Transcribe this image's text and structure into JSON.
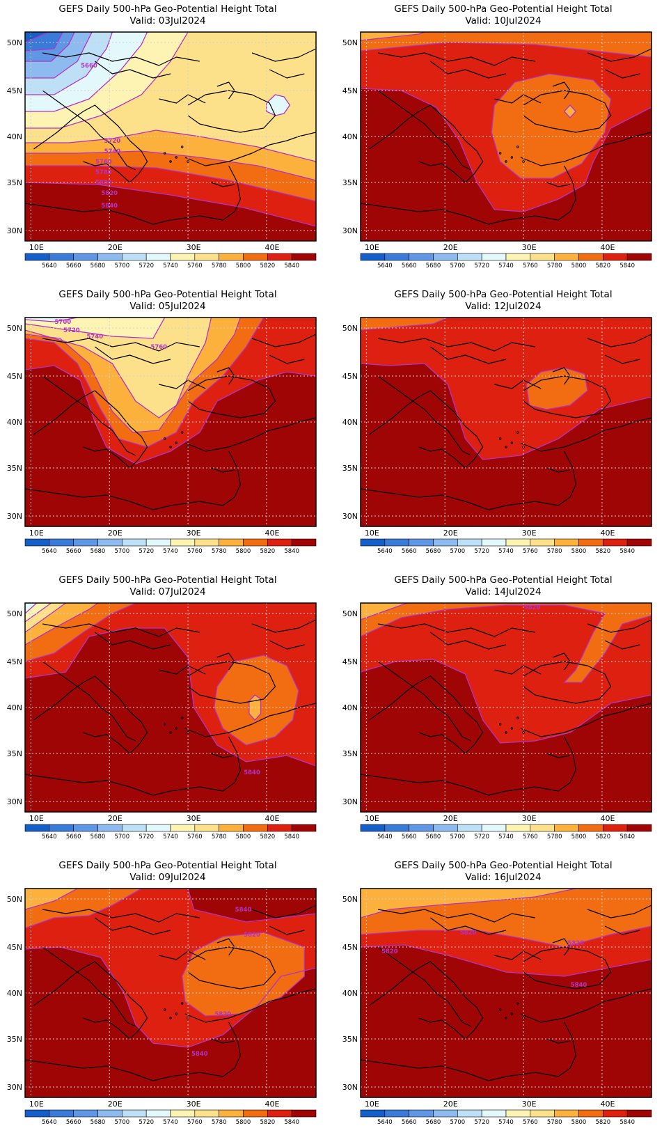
{
  "panel_title": "GEFS Daily 500-hPa Geo-Potential Height Total",
  "valid_prefix": "Valid:",
  "lat_labels": [
    "50N",
    "45N",
    "40N",
    "35N",
    "30N"
  ],
  "lon_labels": [
    "10E",
    "20E",
    "30E",
    "40E"
  ],
  "colorbar": {
    "labels": [
      "5640",
      "5660",
      "5680",
      "5700",
      "5720",
      "5740",
      "5760",
      "5780",
      "5800",
      "5820",
      "5840"
    ],
    "colors": [
      "#1560c8",
      "#3a7ad8",
      "#5f97e4",
      "#8dbbf0",
      "#bde0f7",
      "#e2f8fb",
      "#fdf4b4",
      "#fde08a",
      "#fbb13c",
      "#f26c12",
      "#dd2010",
      "#a00505"
    ],
    "contour_color": "#b233c6"
  },
  "chart_data": [
    {
      "type": "map",
      "valid": "03Jul2024",
      "contour_labels": [
        "5660",
        "5720",
        "5740",
        "5760",
        "5780",
        "5800",
        "5820",
        "5840"
      ]
    },
    {
      "type": "map",
      "valid": "10Jul2024",
      "contour_labels": []
    },
    {
      "type": "map",
      "valid": "05Jul2024",
      "contour_labels": [
        "5700",
        "5720",
        "5740",
        "5760"
      ]
    },
    {
      "type": "map",
      "valid": "12Jul2024",
      "contour_labels": []
    },
    {
      "type": "map",
      "valid": "07Jul2024",
      "contour_labels": [
        "5840"
      ]
    },
    {
      "type": "map",
      "valid": "14Jul2024",
      "contour_labels": [
        "5820"
      ]
    },
    {
      "type": "map",
      "valid": "09Jul2024",
      "contour_labels": [
        "5840",
        "5820",
        "5820",
        "5840"
      ]
    },
    {
      "type": "map",
      "valid": "16Jul2024",
      "contour_labels": [
        "5820",
        "5820",
        "5820",
        "5840"
      ]
    }
  ]
}
